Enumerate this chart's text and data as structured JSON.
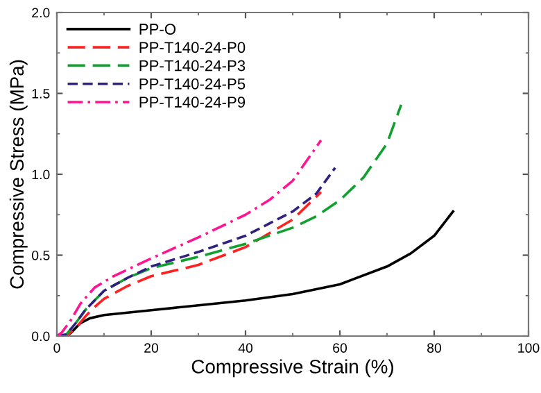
{
  "chart_data": {
    "type": "line",
    "xlabel": "Compressive Strain (%)",
    "ylabel": "Compressive Stress (MPa)",
    "xlim": [
      0,
      100
    ],
    "ylim": [
      0,
      2.0
    ],
    "xticks": [
      0,
      20,
      40,
      60,
      80,
      100
    ],
    "yticks": [
      {
        "value": 0,
        "label": "0.0"
      },
      0.5,
      {
        "value": 1,
        "label": "1.0"
      },
      1.5,
      {
        "value": 2,
        "label": "2.0"
      }
    ],
    "grid": false,
    "legend": "top left",
    "series": [
      {
        "name": "PP-O",
        "color": "#000000",
        "line_style": "solid",
        "x": [
          0,
          2,
          3,
          5,
          7,
          10,
          20,
          30,
          40,
          50,
          60,
          70,
          75,
          80,
          84
        ],
        "values": [
          0,
          0,
          0.02,
          0.08,
          0.11,
          0.13,
          0.16,
          0.19,
          0.22,
          0.26,
          0.32,
          0.43,
          0.51,
          0.62,
          0.77
        ]
      },
      {
        "name": "PP-T140-24-P0",
        "color": "#ff2020",
        "line_style": "longdash",
        "x": [
          0,
          2,
          4,
          6,
          8,
          10,
          15,
          20,
          30,
          40,
          50,
          56
        ],
        "values": [
          0,
          0,
          0.05,
          0.12,
          0.18,
          0.23,
          0.31,
          0.37,
          0.44,
          0.55,
          0.72,
          0.89
        ]
      },
      {
        "name": "PP-T140-24-P3",
        "color": "#10a030",
        "line_style": "longdash",
        "x": [
          0,
          2,
          4,
          6,
          10,
          15,
          20,
          30,
          40,
          50,
          55,
          60,
          65,
          70,
          73
        ],
        "values": [
          0,
          0.01,
          0.08,
          0.16,
          0.28,
          0.36,
          0.42,
          0.49,
          0.57,
          0.67,
          0.74,
          0.84,
          0.98,
          1.19,
          1.43
        ]
      },
      {
        "name": "PP-T140-24-P5",
        "color": "#302080",
        "line_style": "dashed",
        "x": [
          0,
          2,
          4,
          6,
          10,
          15,
          20,
          30,
          40,
          50,
          55,
          59
        ],
        "values": [
          0,
          0.01,
          0.08,
          0.16,
          0.28,
          0.36,
          0.43,
          0.52,
          0.62,
          0.77,
          0.88,
          1.04
        ]
      },
      {
        "name": "PP-T140-24-P9",
        "color": "#ff1493",
        "line_style": "dashdot",
        "x": [
          0,
          1,
          3,
          5,
          8,
          12,
          20,
          30,
          40,
          45,
          50,
          56
        ],
        "values": [
          0,
          0.02,
          0.1,
          0.2,
          0.3,
          0.37,
          0.48,
          0.61,
          0.75,
          0.84,
          0.96,
          1.21
        ]
      }
    ]
  }
}
